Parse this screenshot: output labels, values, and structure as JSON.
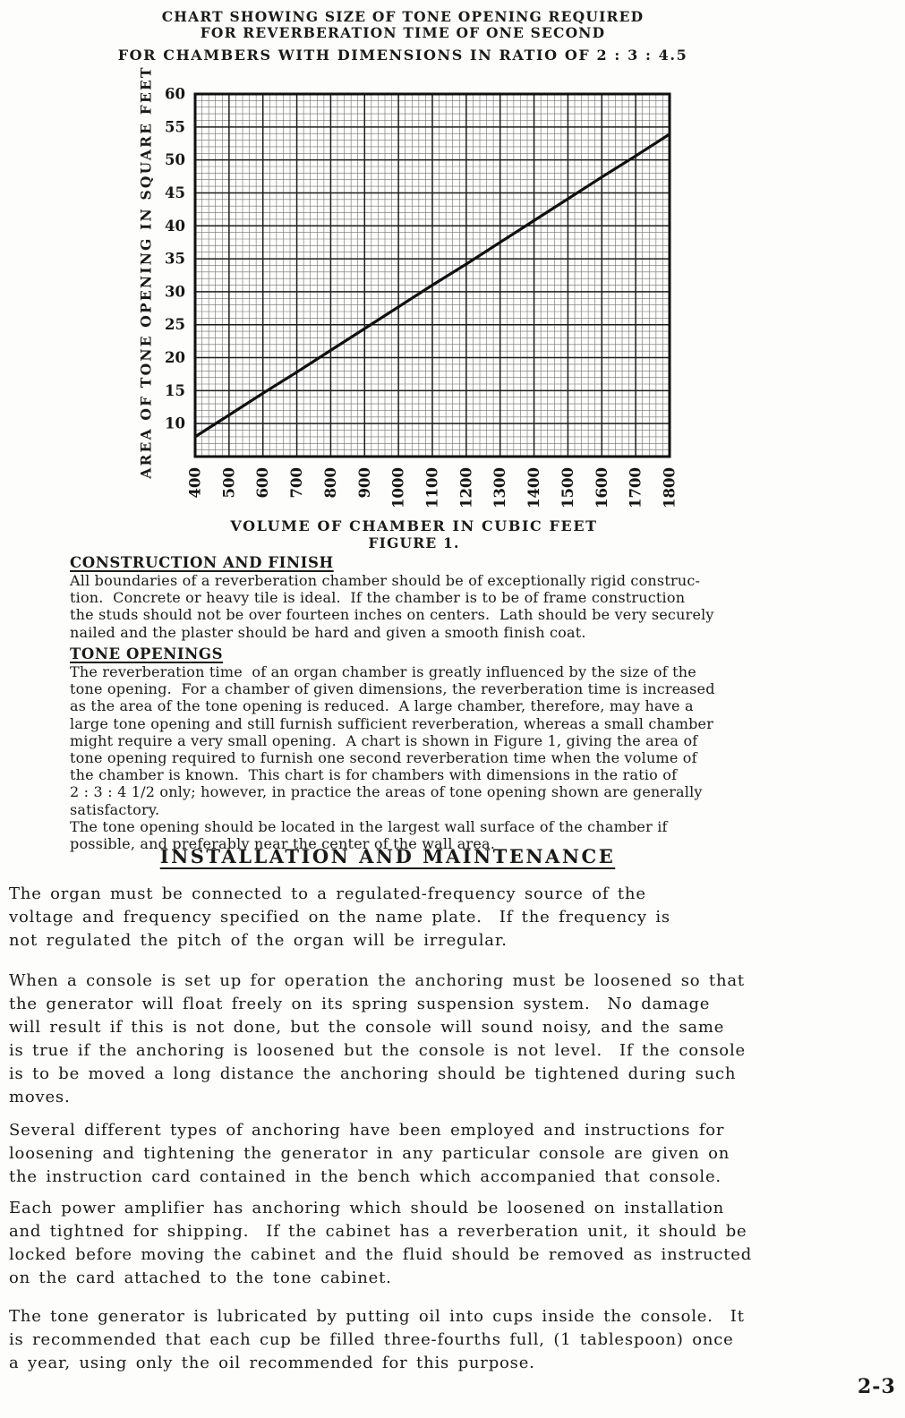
{
  "page": {
    "page_number": "2-3"
  },
  "chart_title": {
    "line1": "CHART SHOWING SIZE OF TONE OPENING REQUIRED",
    "line2": "FOR REVERBERATION TIME OF ONE SECOND",
    "line3": "FOR CHAMBERS WITH DIMENSIONS IN RATIO OF 2 : 3 : 4.5"
  },
  "chart_data": {
    "type": "line",
    "title": "CHART SHOWING SIZE OF TONE OPENING REQUIRED FOR REVERBERATION TIME OF ONE SECOND FOR CHAMBERS WITH DIMENSIONS IN RATIO OF 2 : 3 : 4.5",
    "xlabel": "VOLUME OF CHAMBER IN CUBIC FEET",
    "ylabel": "AREA OF TONE OPENING IN SQUARE FEET",
    "caption": "FIGURE 1.",
    "x": [
      400,
      500,
      600,
      700,
      800,
      900,
      1000,
      1100,
      1200,
      1300,
      1400,
      1500,
      1600,
      1700,
      1800
    ],
    "y": [
      8,
      11.3,
      14.6,
      17.8,
      21.1,
      24.4,
      27.7,
      31,
      34.2,
      37.5,
      40.8,
      44.1,
      47.4,
      50.6,
      53.9
    ],
    "xlim": [
      400,
      1800
    ],
    "ylim": [
      5,
      60
    ],
    "xticks": [
      400,
      500,
      600,
      700,
      800,
      900,
      1000,
      1100,
      1200,
      1300,
      1400,
      1500,
      1600,
      1700,
      1800
    ],
    "yticks": [
      10,
      15,
      20,
      25,
      30,
      35,
      40,
      45,
      50,
      55,
      60
    ],
    "x_minor_step": 20,
    "y_minor_step": 1,
    "grid": true,
    "legend": "none"
  },
  "sections": [
    {
      "heading": "CONSTRUCTION AND FINISH",
      "body": "All boundaries of a reverberation chamber should be of exceptionally rigid construc-\ntion.  Concrete or heavy tile is ideal.  If the chamber is to be of frame construction\nthe studs should not be over fourteen inches on centers.  Lath should be very securely\nnailed and the plaster should be hard and given a smooth finish coat."
    },
    {
      "heading": "TONE OPENINGS",
      "body": "The reverberation time  of an organ chamber is greatly influenced by the size of the\ntone opening.  For a chamber of given dimensions, the reverberation time is increased\nas the area of the tone opening is reduced.  A large chamber, therefore, may have a\nlarge tone opening and still furnish sufficient reverberation, whereas a small chamber\nmight require a very small opening.  A chart is shown in Figure 1, giving the area of\ntone opening required to furnish one second reverberation time when the volume of\nthe chamber is known.  This chart is for chambers with dimensions in the ratio of\n2 : 3 : 4 1/2 only; however, in practice the areas of tone opening shown are generally\nsatisfactory.",
      "body2": "The tone opening should be located in the largest wall surface of the chamber if\npossible, and preferably near the center of the wall area."
    }
  ],
  "installation": {
    "heading": "INSTALLATION AND MAINTENANCE",
    "paragraphs": [
      "The organ must be connected to a regulated-frequency source of the\nvoltage and frequency specified on the name plate.  If the frequency is\nnot regulated the pitch of the organ will be irregular.",
      "When a console is set up for operation the anchoring must be loosened so that\nthe generator will float freely on its spring suspension system.  No damage\nwill result if this is not done, but the console will sound noisy, and the same\nis true if the anchoring is loosened but the console is not level.  If the console\nis to be moved a long distance the anchoring should be tightened during such\nmoves.",
      "Several different types of anchoring have been employed and instructions for\nloosening and tightening the generator in any particular console are given on\nthe instruction card contained in the bench which accompanied that console.",
      "Each power amplifier has anchoring which should be loosened on installation\nand tightned for shipping.  If the cabinet has a reverberation unit, it should be\nlocked before moving the cabinet and the fluid should be removed as instructed\non the card attached to the tone cabinet.",
      "The tone generator is lubricated by putting oil into cups inside the console.  It\nis recommended that each cup be filled three-fourths full, (1 tablespoon) once\na year, using only the oil recommended for this purpose."
    ]
  }
}
